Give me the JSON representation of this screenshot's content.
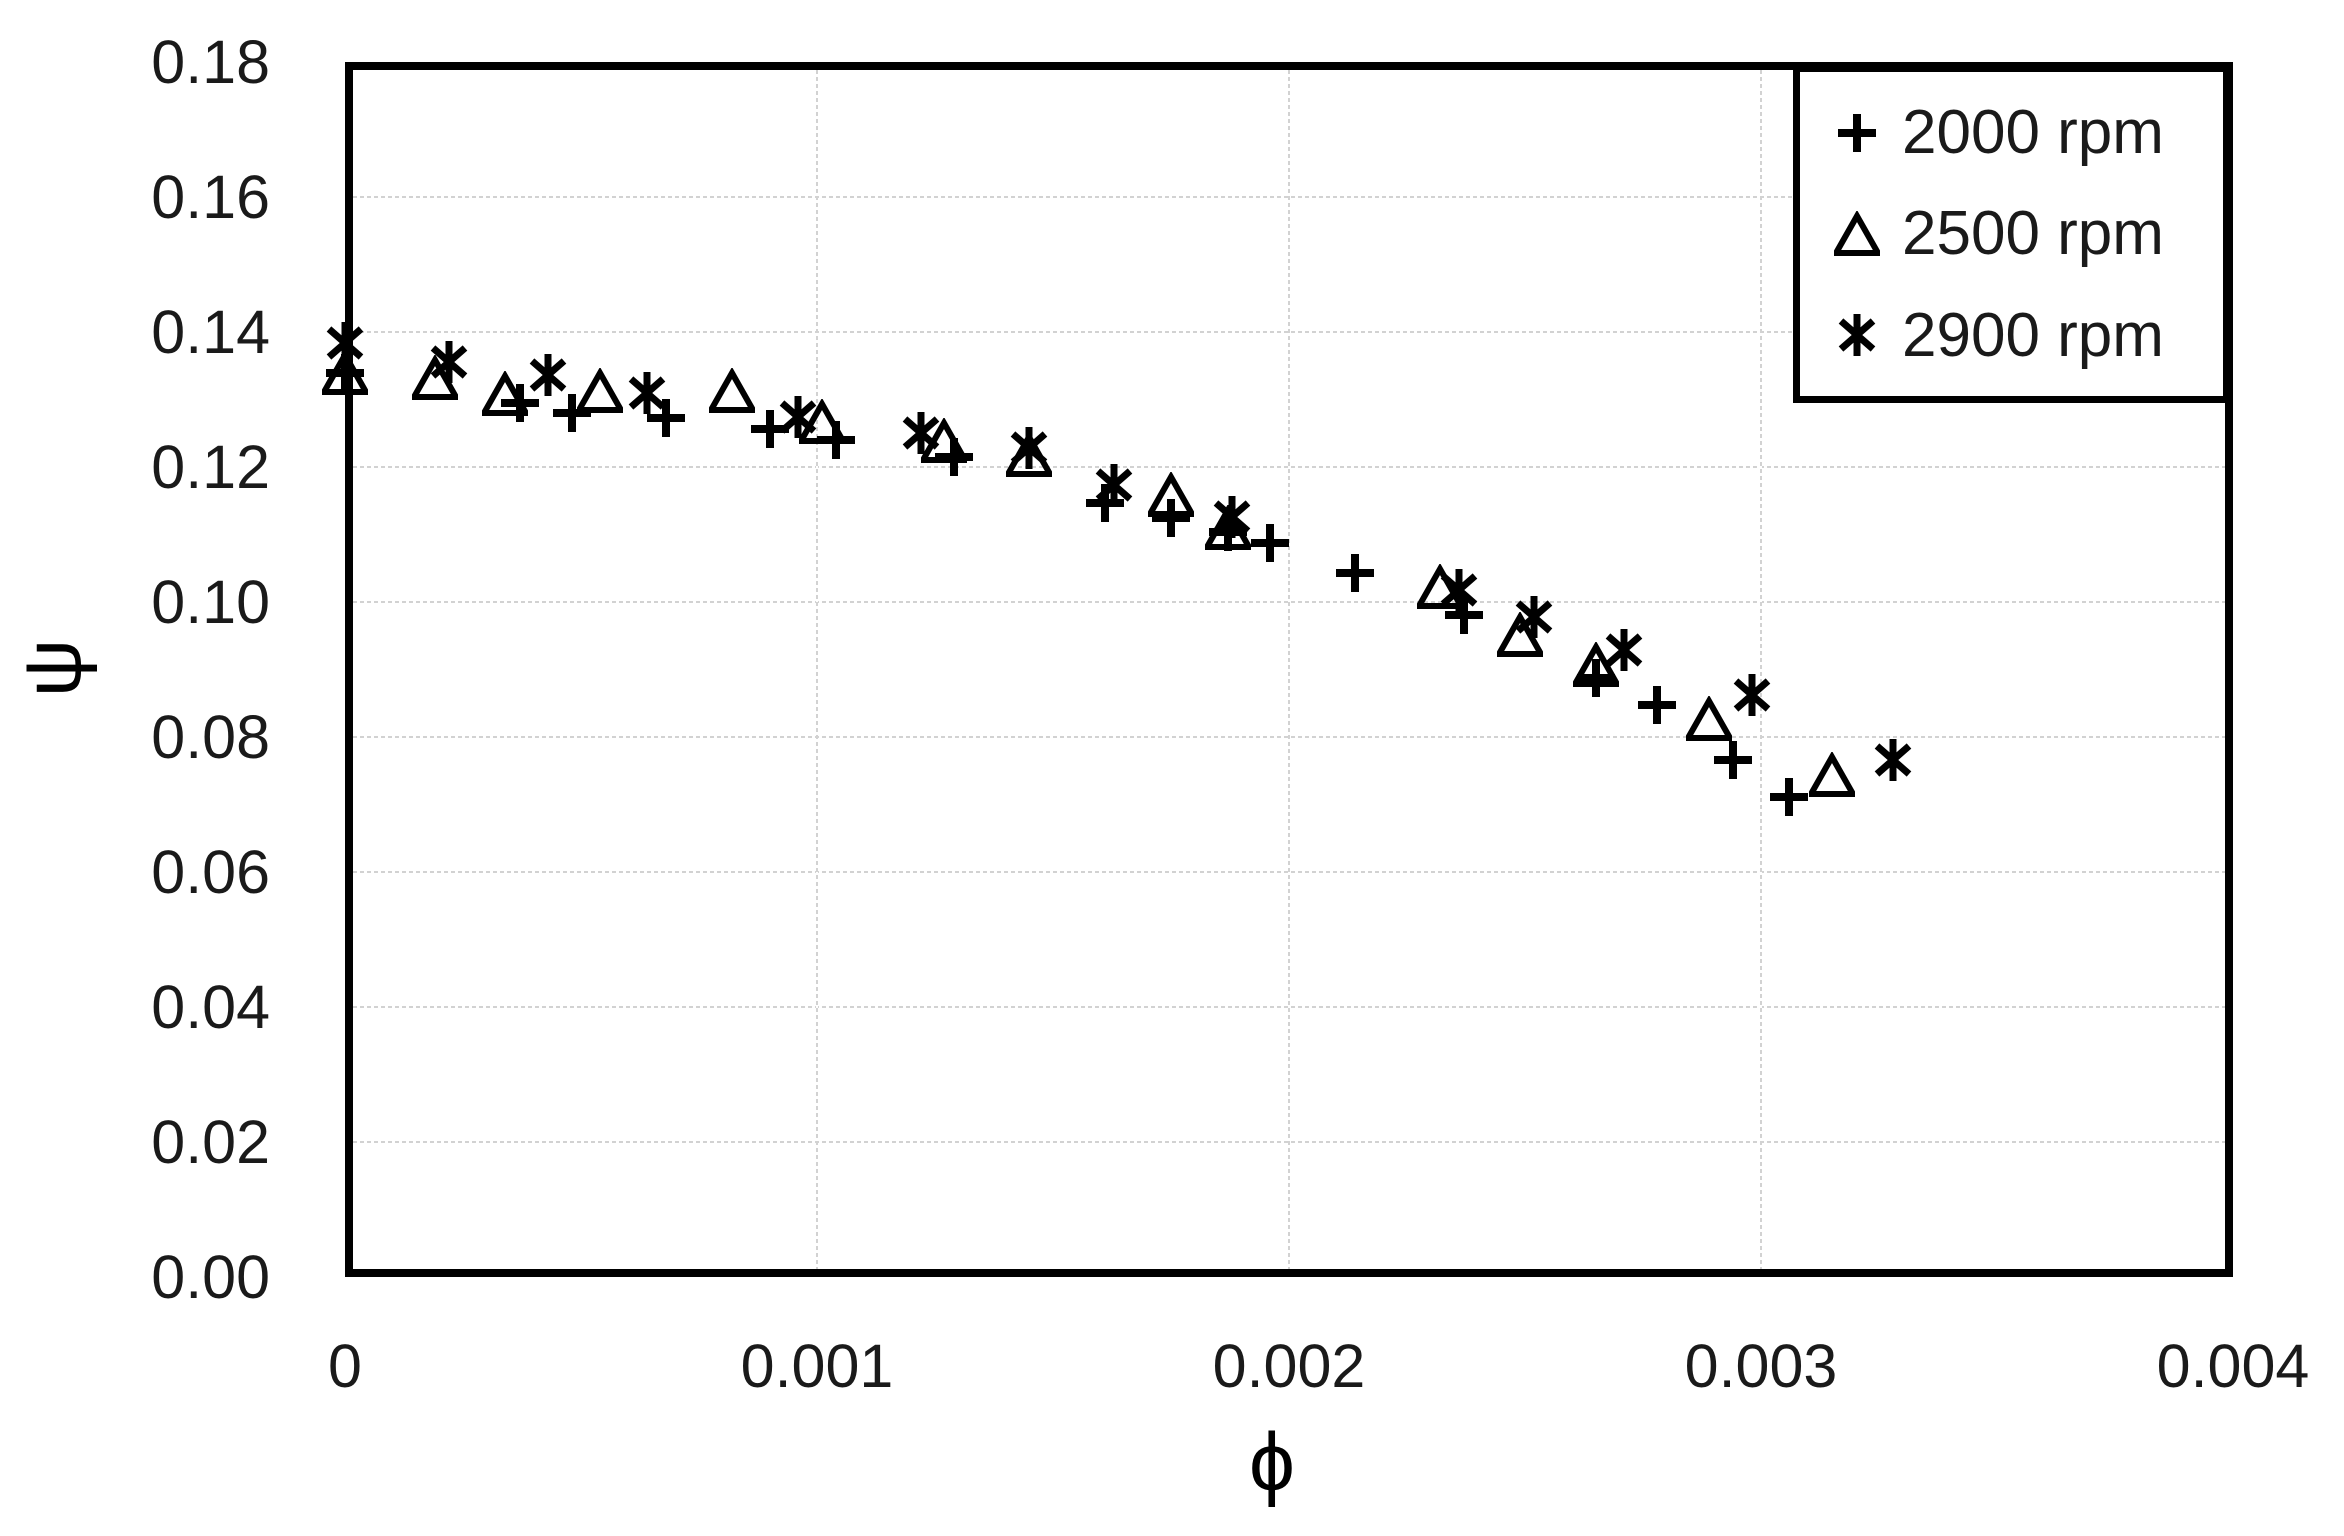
{
  "chart_data": {
    "type": "scatter",
    "title": "",
    "xlabel": "ϕ",
    "ylabel": "ψ",
    "xlim": [
      0,
      0.004
    ],
    "ylim": [
      0.0,
      0.18
    ],
    "grid": true,
    "legend_position": "top-right-inside",
    "x_ticks": [
      {
        "value": 0,
        "label": "0"
      },
      {
        "value": 0.001,
        "label": "0.001"
      },
      {
        "value": 0.002,
        "label": "0.002"
      },
      {
        "value": 0.003,
        "label": "0.003"
      },
      {
        "value": 0.004,
        "label": "0.004"
      }
    ],
    "y_ticks": [
      {
        "value": 0.0,
        "label": "0.00"
      },
      {
        "value": 0.02,
        "label": "0.02"
      },
      {
        "value": 0.04,
        "label": "0.04"
      },
      {
        "value": 0.06,
        "label": "0.06"
      },
      {
        "value": 0.08,
        "label": "0.08"
      },
      {
        "value": 0.1,
        "label": "0.10"
      },
      {
        "value": 0.12,
        "label": "0.12"
      },
      {
        "value": 0.14,
        "label": "0.14"
      },
      {
        "value": 0.16,
        "label": "0.16"
      },
      {
        "value": 0.18,
        "label": "0.18"
      }
    ],
    "series": [
      {
        "name": "2000 rpm",
        "marker": "plus",
        "points": [
          [
            0.0,
            0.134
          ],
          [
            0.00037,
            0.1295
          ],
          [
            0.00048,
            0.128
          ],
          [
            0.00068,
            0.1272
          ],
          [
            0.0009,
            0.1257
          ],
          [
            0.00104,
            0.124
          ],
          [
            0.00129,
            0.1215
          ],
          [
            0.00161,
            0.1147
          ],
          [
            0.00175,
            0.1125
          ],
          [
            0.00187,
            0.1103
          ],
          [
            0.00196,
            0.1087
          ],
          [
            0.00214,
            0.1043
          ],
          [
            0.00237,
            0.0981
          ],
          [
            0.00265,
            0.0887
          ],
          [
            0.00278,
            0.0847
          ],
          [
            0.00294,
            0.0766
          ],
          [
            0.00306,
            0.0711
          ]
        ]
      },
      {
        "name": "2500 rpm",
        "marker": "triangle-open",
        "points": [
          [
            0.0,
            0.134
          ],
          [
            0.00019,
            0.1332
          ],
          [
            0.00034,
            0.1308
          ],
          [
            0.00054,
            0.1312
          ],
          [
            0.00082,
            0.1312
          ],
          [
            0.00101,
            0.1267
          ],
          [
            0.00127,
            0.1238
          ],
          [
            0.00145,
            0.1218
          ],
          [
            0.00175,
            0.1158
          ],
          [
            0.00187,
            0.111
          ],
          [
            0.00232,
            0.1022
          ],
          [
            0.00249,
            0.0951
          ],
          [
            0.00265,
            0.0907
          ],
          [
            0.00289,
            0.0827
          ],
          [
            0.00315,
            0.0744
          ]
        ]
      },
      {
        "name": "2900 rpm",
        "marker": "asterisk",
        "points": [
          [
            0.0,
            0.1384
          ],
          [
            0.00022,
            0.1355
          ],
          [
            0.00043,
            0.1336
          ],
          [
            0.00064,
            0.131
          ],
          [
            0.00096,
            0.1274
          ],
          [
            0.00122,
            0.125
          ],
          [
            0.00145,
            0.1228
          ],
          [
            0.00163,
            0.1173
          ],
          [
            0.00188,
            0.1126
          ],
          [
            0.00236,
            0.1018
          ],
          [
            0.00252,
            0.0978
          ],
          [
            0.00271,
            0.0929
          ],
          [
            0.00298,
            0.0862
          ],
          [
            0.00328,
            0.0766
          ]
        ]
      }
    ],
    "colors": {
      "marker": "#000000",
      "gridline": "#d2d2d2",
      "frame": "#000000",
      "text": "#1a1a1a"
    }
  }
}
